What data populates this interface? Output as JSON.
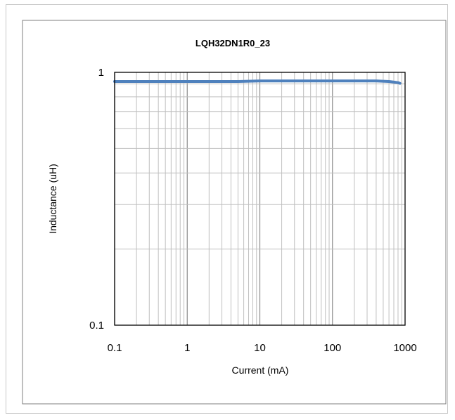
{
  "chart_data": {
    "type": "line",
    "title": "LQH32DN1R0_23",
    "xlabel": "Current (mA)",
    "ylabel": "Inductance (uH)",
    "x_scale": "log",
    "y_scale": "log",
    "xlim": [
      0.1,
      1000
    ],
    "ylim": [
      0.1,
      1
    ],
    "x_ticks": [
      "0.1",
      "1",
      "10",
      "100",
      "1000"
    ],
    "y_ticks": [
      "0.1",
      "1"
    ],
    "grid": true,
    "legend": "none",
    "series": [
      {
        "color": "#4f81bd",
        "x": [
          0.1,
          0.2,
          0.5,
          1,
          2,
          5,
          10,
          20,
          50,
          100,
          200,
          400,
          600,
          700,
          800,
          850
        ],
        "y": [
          0.92,
          0.92,
          0.92,
          0.92,
          0.92,
          0.92,
          0.925,
          0.925,
          0.925,
          0.925,
          0.925,
          0.925,
          0.92,
          0.915,
          0.91,
          0.905
        ]
      }
    ]
  }
}
